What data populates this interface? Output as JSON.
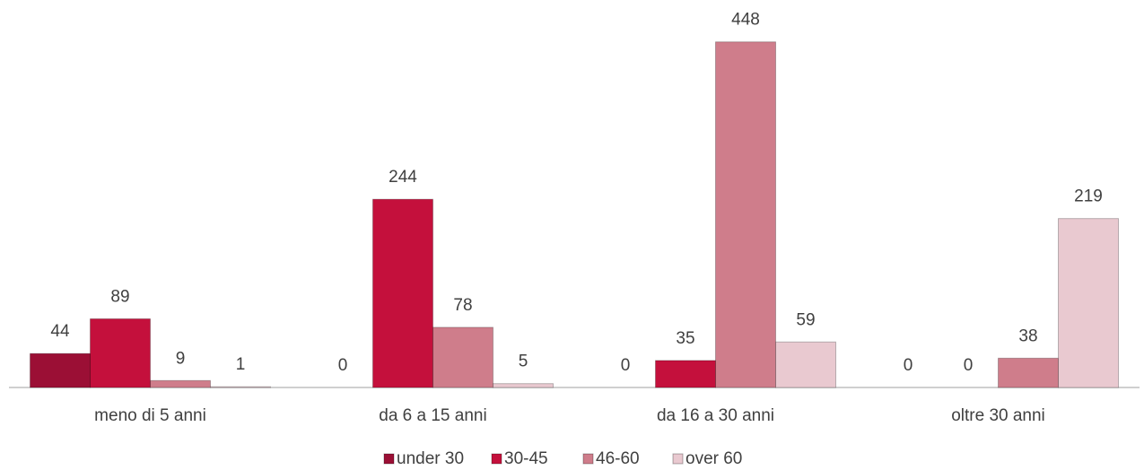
{
  "chart_data": {
    "type": "bar",
    "categories": [
      "meno di 5 anni",
      "da 6 a 15 anni",
      "da 16 a 30 anni",
      "oltre 30 anni"
    ],
    "series": [
      {
        "name": "under 30",
        "color": "#9b0f35",
        "values": [
          44,
          0,
          0,
          0
        ]
      },
      {
        "name": "30-45",
        "color": "#c4103c",
        "values": [
          89,
          244,
          35,
          0
        ]
      },
      {
        "name": "46-60",
        "color": "#cf7d8b",
        "values": [
          9,
          78,
          448,
          38
        ]
      },
      {
        "name": "over 60",
        "color": "#e9c9d0",
        "values": [
          1,
          5,
          59,
          219
        ]
      }
    ],
    "ylim": [
      0,
      500
    ],
    "legend": "bottom"
  }
}
